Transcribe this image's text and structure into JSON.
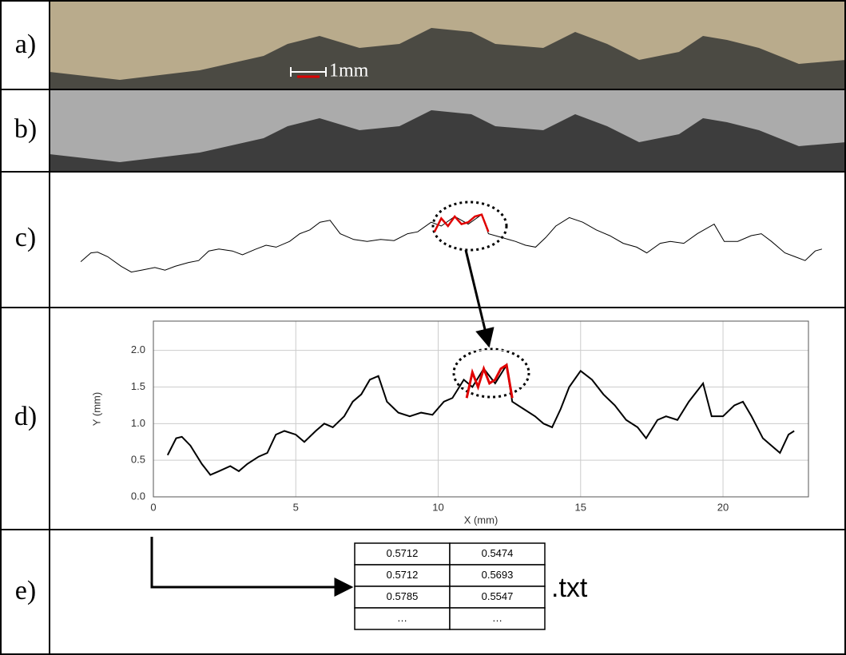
{
  "panels": {
    "labels": [
      "a)",
      "b)",
      "c)",
      "d)",
      "e)"
    ]
  },
  "scale_label": "1mm",
  "chart_data": {
    "type": "line",
    "xlabel": "X (mm)",
    "ylabel": "Y (mm)",
    "xlim": [
      0,
      23
    ],
    "ylim": [
      0,
      2.4
    ],
    "xticks": [
      0,
      5,
      10,
      15,
      20
    ],
    "yticks": [
      {
        "value": 0,
        "label": "0.0"
      },
      0.5,
      {
        "value": 1,
        "label": "1.0"
      },
      1.5,
      {
        "value": 2,
        "label": "2.0"
      }
    ],
    "grid": true,
    "series": [
      {
        "color": "#000000",
        "x": [
          0.5,
          0.8,
          1.0,
          1.3,
          1.7,
          2.0,
          2.3,
          2.7,
          3.0,
          3.3,
          3.7,
          4.0,
          4.3,
          4.6,
          5.0,
          5.3,
          5.7,
          6.0,
          6.3,
          6.7,
          7.0,
          7.3,
          7.6,
          7.9,
          8.2,
          8.6,
          9.0,
          9.4,
          9.8,
          10.2,
          10.5,
          10.9,
          11.2,
          11.6,
          12.0,
          12.4,
          12.6,
          13.0,
          13.4,
          13.7,
          14.0,
          14.3,
          14.6,
          15.0,
          15.4,
          15.8,
          16.2,
          16.6,
          17.0,
          17.3,
          17.7,
          18.0,
          18.4,
          18.8,
          19.3,
          19.6,
          20.0,
          20.4,
          20.7,
          21.0,
          21.4,
          21.7,
          22.0,
          22.3,
          22.5
        ],
        "values": [
          0.57,
          0.8,
          0.82,
          0.7,
          0.45,
          0.3,
          0.35,
          0.42,
          0.35,
          0.45,
          0.55,
          0.6,
          0.85,
          0.9,
          0.85,
          0.75,
          0.9,
          1.0,
          0.95,
          1.1,
          1.3,
          1.4,
          1.6,
          1.65,
          1.3,
          1.15,
          1.1,
          1.15,
          1.12,
          1.3,
          1.35,
          1.6,
          1.5,
          1.75,
          1.55,
          1.8,
          1.3,
          1.2,
          1.1,
          1.0,
          0.95,
          1.2,
          1.5,
          1.72,
          1.6,
          1.4,
          1.25,
          1.05,
          0.95,
          0.8,
          1.05,
          1.1,
          1.05,
          1.3,
          1.55,
          1.1,
          1.1,
          1.25,
          1.3,
          1.1,
          0.8,
          0.7,
          0.6,
          0.85,
          0.9
        ]
      },
      {
        "color": "#e00000",
        "x": [
          11.0,
          11.2,
          11.4,
          11.6,
          11.8,
          12.0,
          12.2,
          12.4,
          12.6
        ],
        "values": [
          1.35,
          1.7,
          1.5,
          1.75,
          1.55,
          1.6,
          1.75,
          1.8,
          1.35
        ]
      }
    ]
  },
  "table": {
    "rows": [
      [
        0.5712,
        0.5474
      ],
      [
        0.5712,
        0.5693
      ],
      [
        0.5785,
        0.5547
      ],
      [
        "…",
        "…"
      ]
    ],
    "suffix": ".txt"
  }
}
